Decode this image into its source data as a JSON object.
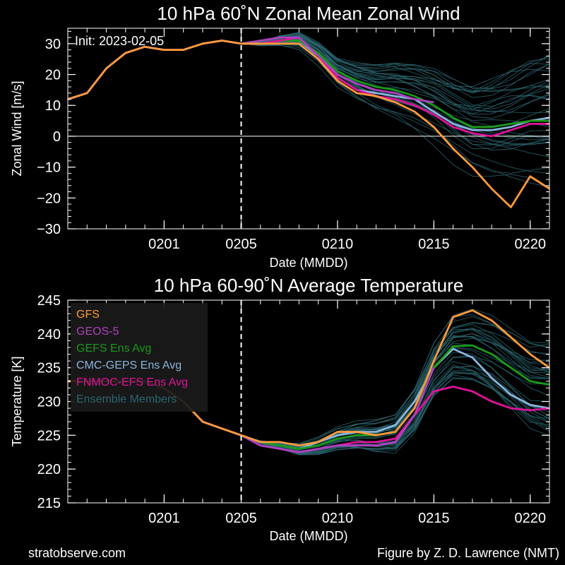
{
  "footer": {
    "left": "stratobserve.com",
    "right": "Figure by Z. D. Lawrence (NMT)"
  },
  "colors": {
    "background": "#000000",
    "GFS": "#ff9a3c",
    "GEOS-5": "#b040c0",
    "GEFS Ens Avg": "#1a9a1a",
    "CMC-GEPS Ens Avg": "#8ab4dc",
    "FNMOC-EFS Ens Avg": "#e0129a",
    "Ensemble Members": "#2a6670"
  },
  "chart_data": [
    {
      "type": "line",
      "title": "10 hPa  60˚N   Zonal Mean Zonal Wind",
      "annotation": "Init: 2023-02-05",
      "xlabel": "Date (MMDD)",
      "ylabel": "Zonal  Wind   [m/s]",
      "xlim": [
        "2023-01-27",
        "2023-02-21"
      ],
      "ylim": [
        -30,
        35
      ],
      "yticks": [
        -30,
        -20,
        -10,
        0,
        10,
        20,
        30
      ],
      "ytick_labels": [
        "−30",
        "−20",
        "−10",
        "0",
        "10",
        "20",
        "30"
      ],
      "xticks": [
        "2023-02-01",
        "2023-02-05",
        "2023-02-10",
        "2023-02-15",
        "2023-02-20"
      ],
      "xtick_labels": [
        "0201",
        "0205",
        "0210",
        "0215",
        "0220"
      ],
      "init_date": "2023-02-05",
      "zero_line": 0,
      "series": [
        {
          "name": "GFS",
          "x": [
            "2023-01-27",
            "2023-01-28",
            "2023-01-29",
            "2023-01-30",
            "2023-01-31",
            "2023-02-01",
            "2023-02-02",
            "2023-02-03",
            "2023-02-04",
            "2023-02-05",
            "2023-02-06",
            "2023-02-07",
            "2023-02-08",
            "2023-02-09",
            "2023-02-10",
            "2023-02-11",
            "2023-02-12",
            "2023-02-13",
            "2023-02-14",
            "2023-02-15",
            "2023-02-16",
            "2023-02-17",
            "2023-02-18",
            "2023-02-19",
            "2023-02-20",
            "2023-02-21"
          ],
          "y": [
            12,
            14,
            22,
            27,
            29,
            28,
            28,
            30,
            31,
            30,
            30,
            30,
            30,
            25,
            18,
            14,
            13,
            11,
            8,
            3,
            -4,
            -10,
            -17,
            -23,
            -13,
            -17
          ]
        },
        {
          "name": "GEOS-5",
          "x": [
            "2023-01-27",
            "2023-01-28",
            "2023-01-29",
            "2023-01-30",
            "2023-01-31",
            "2023-02-01",
            "2023-02-02",
            "2023-02-03",
            "2023-02-04",
            "2023-02-05",
            "2023-02-06",
            "2023-02-07",
            "2023-02-08",
            "2023-02-09",
            "2023-02-10",
            "2023-02-11",
            "2023-02-12",
            "2023-02-13",
            "2023-02-14",
            "2023-02-15"
          ],
          "y": [
            12,
            14,
            22,
            27,
            29,
            28,
            28,
            30,
            31,
            30,
            31,
            32,
            32,
            26,
            20,
            17,
            15,
            14,
            12,
            11
          ]
        },
        {
          "name": "GEFS Ens Avg",
          "x": [
            "2023-01-27",
            "2023-01-28",
            "2023-01-29",
            "2023-01-30",
            "2023-01-31",
            "2023-02-01",
            "2023-02-02",
            "2023-02-03",
            "2023-02-04",
            "2023-02-05",
            "2023-02-06",
            "2023-02-07",
            "2023-02-08",
            "2023-02-09",
            "2023-02-10",
            "2023-02-11",
            "2023-02-12",
            "2023-02-13",
            "2023-02-14",
            "2023-02-15",
            "2023-02-16",
            "2023-02-17",
            "2023-02-18",
            "2023-02-19",
            "2023-02-20",
            "2023-02-21"
          ],
          "y": [
            12,
            14,
            22,
            27,
            29,
            28,
            28,
            30,
            31,
            30,
            30,
            31,
            31,
            27,
            21,
            18,
            16,
            15,
            13,
            10,
            6,
            3,
            3,
            4,
            5,
            5
          ]
        },
        {
          "name": "CMC-GEPS Ens Avg",
          "x": [
            "2023-01-27",
            "2023-01-28",
            "2023-01-29",
            "2023-01-30",
            "2023-01-31",
            "2023-02-01",
            "2023-02-02",
            "2023-02-03",
            "2023-02-04",
            "2023-02-05",
            "2023-02-06",
            "2023-02-07",
            "2023-02-08",
            "2023-02-09",
            "2023-02-10",
            "2023-02-11",
            "2023-02-12",
            "2023-02-13",
            "2023-02-14",
            "2023-02-15",
            "2023-02-16",
            "2023-02-17",
            "2023-02-18",
            "2023-02-19",
            "2023-02-20",
            "2023-02-21"
          ],
          "y": [
            12,
            14,
            22,
            27,
            29,
            28,
            28,
            30,
            31,
            30,
            30,
            31,
            31,
            26,
            19,
            15,
            14,
            13,
            12,
            8,
            4,
            2,
            2,
            3,
            5,
            6
          ]
        },
        {
          "name": "FNMOC-EFS Ens Avg",
          "x": [
            "2023-01-27",
            "2023-01-28",
            "2023-01-29",
            "2023-01-30",
            "2023-01-31",
            "2023-02-01",
            "2023-02-02",
            "2023-02-03",
            "2023-02-04",
            "2023-02-05",
            "2023-02-06",
            "2023-02-07",
            "2023-02-08",
            "2023-02-09",
            "2023-02-10",
            "2023-02-11",
            "2023-02-12",
            "2023-02-13",
            "2023-02-14",
            "2023-02-15",
            "2023-02-16",
            "2023-02-17",
            "2023-02-18",
            "2023-02-19",
            "2023-02-20",
            "2023-02-21"
          ],
          "y": [
            12,
            14,
            22,
            27,
            29,
            28,
            28,
            30,
            31,
            30,
            30,
            31,
            32,
            26,
            19,
            15,
            13,
            12,
            10,
            7,
            3,
            1,
            0,
            2,
            4,
            4
          ]
        }
      ]
    },
    {
      "type": "line",
      "title": "10 hPa  60-90˚N Average Temperature",
      "xlabel": "Date (MMDD)",
      "ylabel": "Temperature  [K]",
      "xlim": [
        "2023-01-27",
        "2023-02-21"
      ],
      "ylim": [
        215,
        245
      ],
      "yticks": [
        215,
        220,
        225,
        230,
        235,
        240,
        245
      ],
      "ytick_labels": [
        "215",
        "220",
        "225",
        "230",
        "235",
        "240",
        "245"
      ],
      "xticks": [
        "2023-02-01",
        "2023-02-05",
        "2023-02-10",
        "2023-02-15",
        "2023-02-20"
      ],
      "xtick_labels": [
        "0201",
        "0205",
        "0210",
        "0215",
        "0220"
      ],
      "init_date": "2023-02-05",
      "legend": {
        "placement": "top-left",
        "entries": [
          "GFS",
          "GEOS-5",
          "GEFS Ens Avg",
          "CMC-GEPS Ens Avg",
          "FNMOC-EFS Ens Avg",
          "Ensemble Members"
        ]
      },
      "series": [
        {
          "name": "GFS",
          "x": [
            "2023-01-27",
            "2023-01-28",
            "2023-01-29",
            "2023-01-30",
            "2023-01-31",
            "2023-02-01",
            "2023-02-02",
            "2023-02-03",
            "2023-02-04",
            "2023-02-05",
            "2023-02-06",
            "2023-02-07",
            "2023-02-08",
            "2023-02-09",
            "2023-02-10",
            "2023-02-11",
            "2023-02-12",
            "2023-02-13",
            "2023-02-14",
            "2023-02-15",
            "2023-02-16",
            "2023-02-17",
            "2023-02-18",
            "2023-02-19",
            "2023-02-20",
            "2023-02-21"
          ],
          "y": [
            233,
            233,
            233,
            233,
            233,
            232,
            230,
            227,
            226,
            225,
            224,
            224,
            223.5,
            224,
            225.5,
            225.5,
            225,
            225.5,
            229,
            236,
            242.5,
            243.5,
            242,
            239.5,
            237,
            235
          ]
        },
        {
          "name": "GEOS-5",
          "x": [
            "2023-01-27",
            "2023-01-28",
            "2023-01-29",
            "2023-01-30",
            "2023-01-31",
            "2023-02-01",
            "2023-02-02",
            "2023-02-03",
            "2023-02-04",
            "2023-02-05",
            "2023-02-06",
            "2023-02-07",
            "2023-02-08",
            "2023-02-09",
            "2023-02-10",
            "2023-02-11",
            "2023-02-12",
            "2023-02-13",
            "2023-02-14",
            "2023-02-15"
          ],
          "y": [
            233,
            233,
            233,
            233,
            233,
            232,
            230,
            227,
            226,
            225,
            223.5,
            223,
            222.5,
            223,
            223.5,
            223.5,
            223.5,
            224,
            228,
            235
          ]
        },
        {
          "name": "GEFS Ens Avg",
          "x": [
            "2023-01-27",
            "2023-01-28",
            "2023-01-29",
            "2023-01-30",
            "2023-01-31",
            "2023-02-01",
            "2023-02-02",
            "2023-02-03",
            "2023-02-04",
            "2023-02-05",
            "2023-02-06",
            "2023-02-07",
            "2023-02-08",
            "2023-02-09",
            "2023-02-10",
            "2023-02-11",
            "2023-02-12",
            "2023-02-13",
            "2023-02-14",
            "2023-02-15",
            "2023-02-16",
            "2023-02-17",
            "2023-02-18",
            "2023-02-19",
            "2023-02-20",
            "2023-02-21"
          ],
          "y": [
            233,
            233,
            233,
            233,
            233,
            232,
            230,
            227,
            226,
            225,
            224,
            223.5,
            223,
            223.5,
            224.5,
            225,
            225,
            225.5,
            229,
            235,
            238.2,
            238.3,
            237,
            235,
            233,
            232.5
          ]
        },
        {
          "name": "CMC-GEPS Ens Avg",
          "x": [
            "2023-01-27",
            "2023-01-28",
            "2023-01-29",
            "2023-01-30",
            "2023-01-31",
            "2023-02-01",
            "2023-02-02",
            "2023-02-03",
            "2023-02-04",
            "2023-02-05",
            "2023-02-06",
            "2023-02-07",
            "2023-02-08",
            "2023-02-09",
            "2023-02-10",
            "2023-02-11",
            "2023-02-12",
            "2023-02-13",
            "2023-02-14",
            "2023-02-15",
            "2023-02-16",
            "2023-02-17",
            "2023-02-18",
            "2023-02-19",
            "2023-02-20",
            "2023-02-21"
          ],
          "y": [
            233,
            233,
            233,
            233,
            233,
            232,
            230,
            227,
            226,
            225,
            224,
            223.5,
            223,
            224,
            225,
            225.5,
            225.5,
            226.5,
            230,
            235,
            237.8,
            236.5,
            233.5,
            231,
            229.5,
            229
          ]
        },
        {
          "name": "FNMOC-EFS Ens Avg",
          "x": [
            "2023-01-27",
            "2023-01-28",
            "2023-01-29",
            "2023-01-30",
            "2023-01-31",
            "2023-02-01",
            "2023-02-02",
            "2023-02-03",
            "2023-02-04",
            "2023-02-05",
            "2023-02-06",
            "2023-02-07",
            "2023-02-08",
            "2023-02-09",
            "2023-02-10",
            "2023-02-11",
            "2023-02-12",
            "2023-02-13",
            "2023-02-14",
            "2023-02-15",
            "2023-02-16",
            "2023-02-17",
            "2023-02-18",
            "2023-02-19",
            "2023-02-20",
            "2023-02-21"
          ],
          "y": [
            233,
            233,
            233,
            233,
            233,
            232,
            230,
            227,
            226,
            225,
            223.5,
            223,
            222.5,
            223,
            223.5,
            224,
            224,
            224.5,
            228,
            231.5,
            232.2,
            231.5,
            230,
            229,
            228.7,
            229
          ]
        }
      ]
    }
  ]
}
